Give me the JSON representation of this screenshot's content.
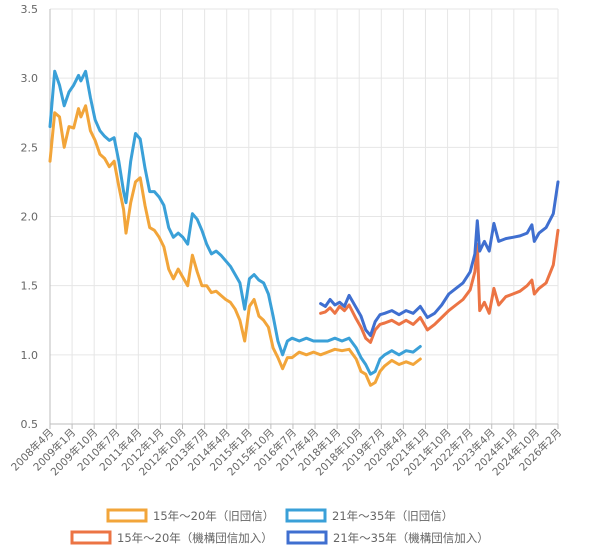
{
  "chart_data": {
    "type": "line",
    "title": "",
    "xlabel": "",
    "ylabel": "",
    "x_range": [
      "2008-04",
      "2026-02"
    ],
    "ylim": [
      0.5,
      3.5
    ],
    "y_ticks": [
      "0.5",
      "1.0",
      "1.5",
      "2.0",
      "2.5",
      "3.0",
      "3.5"
    ],
    "x_tick_labels": [
      "2008年4月",
      "2009年1月",
      "2009年10月",
      "2010年7月",
      "2011年4月",
      "2012年1月",
      "2012年10月",
      "2013年7月",
      "2014年4月",
      "2015年1月",
      "2015年10月",
      "2016年7月",
      "2017年4月",
      "2018年1月",
      "2018年10月",
      "2019年7月",
      "2020年4月",
      "2021年1月",
      "2021年10月",
      "2022年7月",
      "2023年4月",
      "2024年1月",
      "2024年10月",
      "2026年2月"
    ],
    "legend_position": "bottom",
    "series": [
      {
        "name": "15年～20年（旧団信）",
        "color": "#F2A53A",
        "points": [
          [
            "2008-04",
            2.4
          ],
          [
            "2008-06",
            2.75
          ],
          [
            "2008-08",
            2.72
          ],
          [
            "2008-10",
            2.5
          ],
          [
            "2008-12",
            2.65
          ],
          [
            "2009-02",
            2.64
          ],
          [
            "2009-04",
            2.78
          ],
          [
            "2009-05",
            2.72
          ],
          [
            "2009-07",
            2.8
          ],
          [
            "2009-09",
            2.62
          ],
          [
            "2009-11",
            2.55
          ],
          [
            "2010-01",
            2.45
          ],
          [
            "2010-03",
            2.42
          ],
          [
            "2010-05",
            2.36
          ],
          [
            "2010-07",
            2.4
          ],
          [
            "2010-09",
            2.22
          ],
          [
            "2010-11",
            2.05
          ],
          [
            "2010-12",
            1.88
          ],
          [
            "2011-02",
            2.1
          ],
          [
            "2011-04",
            2.25
          ],
          [
            "2011-06",
            2.28
          ],
          [
            "2011-08",
            2.08
          ],
          [
            "2011-10",
            1.92
          ],
          [
            "2011-12",
            1.9
          ],
          [
            "2012-02",
            1.85
          ],
          [
            "2012-04",
            1.78
          ],
          [
            "2012-06",
            1.62
          ],
          [
            "2012-08",
            1.55
          ],
          [
            "2012-10",
            1.62
          ],
          [
            "2012-12",
            1.56
          ],
          [
            "2013-02",
            1.5
          ],
          [
            "2013-04",
            1.72
          ],
          [
            "2013-06",
            1.6
          ],
          [
            "2013-08",
            1.5
          ],
          [
            "2013-10",
            1.5
          ],
          [
            "2013-12",
            1.45
          ],
          [
            "2014-02",
            1.46
          ],
          [
            "2014-04",
            1.43
          ],
          [
            "2014-06",
            1.4
          ],
          [
            "2014-08",
            1.38
          ],
          [
            "2014-10",
            1.33
          ],
          [
            "2014-12",
            1.25
          ],
          [
            "2015-02",
            1.1
          ],
          [
            "2015-04",
            1.35
          ],
          [
            "2015-06",
            1.4
          ],
          [
            "2015-08",
            1.28
          ],
          [
            "2015-10",
            1.25
          ],
          [
            "2015-12",
            1.2
          ],
          [
            "2016-02",
            1.05
          ],
          [
            "2016-04",
            0.98
          ],
          [
            "2016-06",
            0.9
          ],
          [
            "2016-08",
            0.98
          ],
          [
            "2016-10",
            0.98
          ],
          [
            "2017-01",
            1.02
          ],
          [
            "2017-04",
            1.0
          ],
          [
            "2017-07",
            1.02
          ],
          [
            "2017-10",
            1.0
          ],
          [
            "2018-01",
            1.02
          ],
          [
            "2018-04",
            1.04
          ],
          [
            "2018-07",
            1.03
          ],
          [
            "2018-10",
            1.04
          ],
          [
            "2019-01",
            0.97
          ],
          [
            "2019-03",
            0.88
          ],
          [
            "2019-05",
            0.86
          ],
          [
            "2019-07",
            0.78
          ],
          [
            "2019-09",
            0.8
          ],
          [
            "2019-11",
            0.88
          ],
          [
            "2020-01",
            0.92
          ],
          [
            "2020-04",
            0.96
          ],
          [
            "2020-07",
            0.93
          ],
          [
            "2020-10",
            0.95
          ],
          [
            "2021-01",
            0.93
          ],
          [
            "2021-04",
            0.97
          ]
        ]
      },
      {
        "name": "21年～35年（旧団信）",
        "color": "#3AA0D8",
        "points": [
          [
            "2008-04",
            2.65
          ],
          [
            "2008-06",
            3.05
          ],
          [
            "2008-08",
            2.95
          ],
          [
            "2008-10",
            2.8
          ],
          [
            "2008-12",
            2.9
          ],
          [
            "2009-02",
            2.95
          ],
          [
            "2009-04",
            3.02
          ],
          [
            "2009-05",
            2.98
          ],
          [
            "2009-07",
            3.05
          ],
          [
            "2009-09",
            2.86
          ],
          [
            "2009-11",
            2.7
          ],
          [
            "2010-01",
            2.62
          ],
          [
            "2010-03",
            2.58
          ],
          [
            "2010-05",
            2.55
          ],
          [
            "2010-07",
            2.57
          ],
          [
            "2010-09",
            2.4
          ],
          [
            "2010-11",
            2.18
          ],
          [
            "2010-12",
            2.1
          ],
          [
            "2011-02",
            2.4
          ],
          [
            "2011-04",
            2.6
          ],
          [
            "2011-06",
            2.56
          ],
          [
            "2011-08",
            2.35
          ],
          [
            "2011-10",
            2.18
          ],
          [
            "2011-12",
            2.18
          ],
          [
            "2012-02",
            2.14
          ],
          [
            "2012-04",
            2.08
          ],
          [
            "2012-06",
            1.92
          ],
          [
            "2012-08",
            1.85
          ],
          [
            "2012-10",
            1.88
          ],
          [
            "2012-12",
            1.85
          ],
          [
            "2013-02",
            1.8
          ],
          [
            "2013-04",
            2.02
          ],
          [
            "2013-06",
            1.98
          ],
          [
            "2013-08",
            1.9
          ],
          [
            "2013-10",
            1.8
          ],
          [
            "2013-12",
            1.73
          ],
          [
            "2014-02",
            1.75
          ],
          [
            "2014-04",
            1.72
          ],
          [
            "2014-06",
            1.68
          ],
          [
            "2014-08",
            1.64
          ],
          [
            "2014-10",
            1.58
          ],
          [
            "2014-12",
            1.52
          ],
          [
            "2015-02",
            1.33
          ],
          [
            "2015-04",
            1.55
          ],
          [
            "2015-06",
            1.58
          ],
          [
            "2015-08",
            1.54
          ],
          [
            "2015-10",
            1.52
          ],
          [
            "2015-12",
            1.44
          ],
          [
            "2016-02",
            1.28
          ],
          [
            "2016-04",
            1.1
          ],
          [
            "2016-06",
            1.0
          ],
          [
            "2016-08",
            1.1
          ],
          [
            "2016-10",
            1.12
          ],
          [
            "2017-01",
            1.1
          ],
          [
            "2017-04",
            1.12
          ],
          [
            "2017-07",
            1.1
          ],
          [
            "2017-10",
            1.1
          ],
          [
            "2018-01",
            1.1
          ],
          [
            "2018-04",
            1.12
          ],
          [
            "2018-07",
            1.1
          ],
          [
            "2018-10",
            1.12
          ],
          [
            "2019-01",
            1.05
          ],
          [
            "2019-03",
            0.98
          ],
          [
            "2019-05",
            0.93
          ],
          [
            "2019-07",
            0.86
          ],
          [
            "2019-09",
            0.88
          ],
          [
            "2019-11",
            0.97
          ],
          [
            "2020-01",
            1.0
          ],
          [
            "2020-04",
            1.03
          ],
          [
            "2020-07",
            1.0
          ],
          [
            "2020-10",
            1.03
          ],
          [
            "2021-01",
            1.02
          ],
          [
            "2021-04",
            1.06
          ]
        ]
      },
      {
        "name": "15年～20年（機構団信加入）",
        "color": "#EC7444",
        "points": [
          [
            "2017-10",
            1.3
          ],
          [
            "2017-12",
            1.31
          ],
          [
            "2018-02",
            1.34
          ],
          [
            "2018-04",
            1.3
          ],
          [
            "2018-06",
            1.35
          ],
          [
            "2018-08",
            1.32
          ],
          [
            "2018-10",
            1.36
          ],
          [
            "2019-01",
            1.26
          ],
          [
            "2019-03",
            1.2
          ],
          [
            "2019-05",
            1.12
          ],
          [
            "2019-07",
            1.09
          ],
          [
            "2019-09",
            1.18
          ],
          [
            "2019-11",
            1.22
          ],
          [
            "2020-01",
            1.23
          ],
          [
            "2020-04",
            1.25
          ],
          [
            "2020-07",
            1.22
          ],
          [
            "2020-10",
            1.25
          ],
          [
            "2021-01",
            1.22
          ],
          [
            "2021-04",
            1.27
          ],
          [
            "2021-07",
            1.18
          ],
          [
            "2021-10",
            1.22
          ],
          [
            "2022-01",
            1.27
          ],
          [
            "2022-04",
            1.32
          ],
          [
            "2022-07",
            1.36
          ],
          [
            "2022-10",
            1.4
          ],
          [
            "2023-01",
            1.47
          ],
          [
            "2023-03",
            1.6
          ],
          [
            "2023-04",
            1.8
          ],
          [
            "2023-05",
            1.32
          ],
          [
            "2023-07",
            1.38
          ],
          [
            "2023-09",
            1.3
          ],
          [
            "2023-11",
            1.48
          ],
          [
            "2024-01",
            1.36
          ],
          [
            "2024-04",
            1.42
          ],
          [
            "2024-07",
            1.44
          ],
          [
            "2024-10",
            1.46
          ],
          [
            "2025-01",
            1.5
          ],
          [
            "2025-03",
            1.54
          ],
          [
            "2025-04",
            1.44
          ],
          [
            "2025-06",
            1.48
          ],
          [
            "2025-09",
            1.52
          ],
          [
            "2025-12",
            1.65
          ],
          [
            "2026-02",
            1.9
          ]
        ]
      },
      {
        "name": "21年～35年（機構団信加入）",
        "color": "#3F6FD0",
        "points": [
          [
            "2017-10",
            1.37
          ],
          [
            "2017-12",
            1.35
          ],
          [
            "2018-02",
            1.4
          ],
          [
            "2018-04",
            1.36
          ],
          [
            "2018-06",
            1.38
          ],
          [
            "2018-08",
            1.35
          ],
          [
            "2018-10",
            1.43
          ],
          [
            "2019-01",
            1.34
          ],
          [
            "2019-03",
            1.28
          ],
          [
            "2019-05",
            1.18
          ],
          [
            "2019-07",
            1.14
          ],
          [
            "2019-09",
            1.24
          ],
          [
            "2019-11",
            1.29
          ],
          [
            "2020-01",
            1.3
          ],
          [
            "2020-04",
            1.32
          ],
          [
            "2020-07",
            1.29
          ],
          [
            "2020-10",
            1.32
          ],
          [
            "2021-01",
            1.3
          ],
          [
            "2021-04",
            1.35
          ],
          [
            "2021-07",
            1.27
          ],
          [
            "2021-10",
            1.3
          ],
          [
            "2022-01",
            1.36
          ],
          [
            "2022-04",
            1.44
          ],
          [
            "2022-07",
            1.48
          ],
          [
            "2022-10",
            1.52
          ],
          [
            "2023-01",
            1.6
          ],
          [
            "2023-03",
            1.73
          ],
          [
            "2023-04",
            1.97
          ],
          [
            "2023-05",
            1.75
          ],
          [
            "2023-07",
            1.82
          ],
          [
            "2023-09",
            1.75
          ],
          [
            "2023-11",
            1.95
          ],
          [
            "2024-01",
            1.82
          ],
          [
            "2024-04",
            1.84
          ],
          [
            "2024-07",
            1.85
          ],
          [
            "2024-10",
            1.86
          ],
          [
            "2025-01",
            1.88
          ],
          [
            "2025-03",
            1.94
          ],
          [
            "2025-04",
            1.82
          ],
          [
            "2025-06",
            1.88
          ],
          [
            "2025-09",
            1.92
          ],
          [
            "2025-12",
            2.02
          ],
          [
            "2026-02",
            2.25
          ]
        ]
      }
    ]
  }
}
